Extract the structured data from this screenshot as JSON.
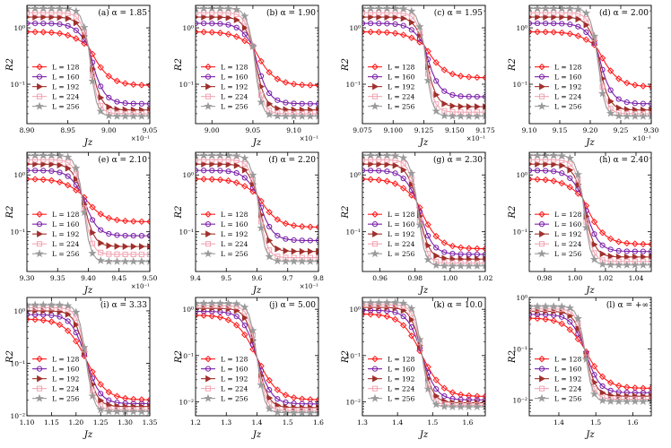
{
  "figure": {
    "legend_labels": [
      "L = 128",
      "L = 160",
      "L = 192",
      "L = 224",
      "L = 256"
    ],
    "series_colors": [
      "#ff1a1a",
      "#7a1fa8",
      "#a0302c",
      "#f2a6b4",
      "#9a9a9a"
    ],
    "series_markers": [
      "diamond",
      "circle",
      "triangle-right",
      "square",
      "star"
    ],
    "ylabel": "R2",
    "xlabel": "Jz"
  },
  "chart_data": [
    {
      "type": "line",
      "panel": "(a)",
      "title": "(a) α = 1.85",
      "xlabel": "Jz",
      "ylabel": "R2",
      "xlim": [
        8.9,
        9.05
      ],
      "ylim": [
        0.02,
        2.5
      ],
      "yscale": "log",
      "xticks": [
        "8.90",
        "8.95",
        "9.00",
        "9.05"
      ],
      "xscale_note": "×10⁻¹",
      "yticks": [
        "10⁰",
        "10⁻¹"
      ],
      "crossing": [
        8.975,
        0.47
      ],
      "series": [
        {
          "name": "L = 128",
          "y_left": 0.85,
          "y_right": 0.095
        },
        {
          "name": "L = 160",
          "y_left": 1.2,
          "y_right": 0.045
        },
        {
          "name": "L = 192",
          "y_left": 1.55,
          "y_right": 0.035
        },
        {
          "name": "L = 224",
          "y_left": 1.85,
          "y_right": 0.03
        },
        {
          "name": "L = 256",
          "y_left": 2.2,
          "y_right": 0.027
        }
      ]
    },
    {
      "type": "line",
      "panel": "(b)",
      "title": "(b) α = 1.90",
      "xlabel": "Jz",
      "ylabel": "R2",
      "xlim": [
        8.98,
        9.13
      ],
      "ylim": [
        0.02,
        2.5
      ],
      "yscale": "log",
      "xticks": [
        "9.00",
        "9.05",
        "9.10"
      ],
      "xscale_note": "×10⁻¹",
      "yticks": [
        "10⁰",
        "10⁻¹"
      ],
      "crossing": [
        9.05,
        0.47
      ],
      "series": [
        {
          "name": "L = 128",
          "y_left": 0.85,
          "y_right": 0.095
        },
        {
          "name": "L = 160",
          "y_left": 1.2,
          "y_right": 0.045
        },
        {
          "name": "L = 192",
          "y_left": 1.55,
          "y_right": 0.035
        },
        {
          "name": "L = 224",
          "y_left": 1.85,
          "y_right": 0.03
        },
        {
          "name": "L = 256",
          "y_left": 2.2,
          "y_right": 0.027
        }
      ]
    },
    {
      "type": "line",
      "panel": "(c)",
      "title": "(c) α = 1.95",
      "xlabel": "Jz",
      "ylabel": "R2",
      "xlim": [
        9.075,
        9.175
      ],
      "ylim": [
        0.02,
        2.5
      ],
      "yscale": "log",
      "xticks": [
        "9.075",
        "9.100",
        "9.125",
        "9.150",
        "9.175"
      ],
      "xscale_note": "×10⁻¹",
      "yticks": [
        "10⁰",
        "10⁻¹"
      ],
      "crossing": [
        9.125,
        0.5
      ],
      "series": [
        {
          "name": "L = 128",
          "y_left": 0.85,
          "y_right": 0.13
        },
        {
          "name": "L = 160",
          "y_left": 1.2,
          "y_right": 0.06
        },
        {
          "name": "L = 192",
          "y_left": 1.55,
          "y_right": 0.04
        },
        {
          "name": "L = 224",
          "y_left": 1.85,
          "y_right": 0.032
        },
        {
          "name": "L = 256",
          "y_left": 2.2,
          "y_right": 0.027
        }
      ]
    },
    {
      "type": "line",
      "panel": "(d)",
      "title": "(d) α = 2.00",
      "xlabel": "Jz",
      "ylabel": "R2",
      "xlim": [
        9.1,
        9.3
      ],
      "ylim": [
        0.02,
        2.5
      ],
      "yscale": "log",
      "xticks": [
        "9.10",
        "9.15",
        "9.20",
        "9.25",
        "9.30"
      ],
      "xscale_note": "×10⁻¹",
      "yticks": [
        "10⁰",
        "10⁻¹"
      ],
      "crossing": [
        9.21,
        0.47
      ],
      "series": [
        {
          "name": "L = 128",
          "y_left": 0.85,
          "y_right": 0.09
        },
        {
          "name": "L = 160",
          "y_left": 1.2,
          "y_right": 0.045
        },
        {
          "name": "L = 192",
          "y_left": 1.55,
          "y_right": 0.035
        },
        {
          "name": "L = 224",
          "y_left": 1.85,
          "y_right": 0.03
        },
        {
          "name": "L = 256",
          "y_left": 2.2,
          "y_right": 0.027
        }
      ]
    },
    {
      "type": "line",
      "panel": "(e)",
      "title": "(e) α = 2.10",
      "xlabel": "Jz",
      "ylabel": "R2",
      "xlim": [
        9.3,
        9.5
      ],
      "ylim": [
        0.02,
        2.5
      ],
      "yscale": "log",
      "xticks": [
        "9.30",
        "9.35",
        "9.40",
        "9.45",
        "9.50"
      ],
      "xscale_note": "×10⁻¹",
      "yticks": [
        "10⁰",
        "10⁻¹"
      ],
      "crossing": [
        9.39,
        0.45
      ],
      "series": [
        {
          "name": "L = 128",
          "y_left": 0.85,
          "y_right": 0.15
        },
        {
          "name": "L = 160",
          "y_left": 1.2,
          "y_right": 0.085
        },
        {
          "name": "L = 192",
          "y_left": 1.55,
          "y_right": 0.055
        },
        {
          "name": "L = 224",
          "y_left": 1.85,
          "y_right": 0.04
        },
        {
          "name": "L = 256",
          "y_left": 2.2,
          "y_right": 0.03
        }
      ]
    },
    {
      "type": "line",
      "panel": "(f)",
      "title": "(f) α = 2.20",
      "xlabel": "Jz",
      "ylabel": "R2",
      "xlim": [
        9.4,
        9.8
      ],
      "ylim": [
        0.02,
        2.5
      ],
      "yscale": "log",
      "xticks": [
        "9.4",
        "9.5",
        "9.6",
        "9.7",
        "9.8"
      ],
      "xscale_note": "×10⁻¹",
      "yticks": [
        "10⁰",
        "10⁻¹"
      ],
      "crossing": [
        9.6,
        0.45
      ],
      "series": [
        {
          "name": "L = 128",
          "y_left": 0.85,
          "y_right": 0.12
        },
        {
          "name": "L = 160",
          "y_left": 1.2,
          "y_right": 0.07
        },
        {
          "name": "L = 192",
          "y_left": 1.55,
          "y_right": 0.045
        },
        {
          "name": "L = 224",
          "y_left": 1.85,
          "y_right": 0.035
        },
        {
          "name": "L = 256",
          "y_left": 2.2,
          "y_right": 0.03
        }
      ]
    },
    {
      "type": "line",
      "panel": "(g)",
      "title": "(g) α = 2.30",
      "xlabel": "Jz",
      "ylabel": "R2",
      "xlim": [
        0.95,
        1.02
      ],
      "ylim": [
        0.02,
        2.5
      ],
      "yscale": "log",
      "xticks": [
        "0.96",
        "0.98",
        "1.00",
        "1.02"
      ],
      "yticks": [
        "10⁰",
        "10⁻¹"
      ],
      "crossing": [
        0.981,
        0.35
      ],
      "series": [
        {
          "name": "L = 128",
          "y_left": 0.85,
          "y_right": 0.05
        },
        {
          "name": "L = 160",
          "y_left": 1.2,
          "y_right": 0.04
        },
        {
          "name": "L = 192",
          "y_left": 1.55,
          "y_right": 0.033
        },
        {
          "name": "L = 224",
          "y_left": 1.85,
          "y_right": 0.028
        },
        {
          "name": "L = 256",
          "y_left": 2.2,
          "y_right": 0.025
        }
      ]
    },
    {
      "type": "line",
      "panel": "(h)",
      "title": "(h) α = 2.40",
      "xlabel": "Jz",
      "ylabel": "R2",
      "xlim": [
        0.97,
        1.05
      ],
      "ylim": [
        0.02,
        2.5
      ],
      "yscale": "log",
      "xticks": [
        "0.98",
        "1.00",
        "1.02",
        "1.04"
      ],
      "yticks": [
        "10⁰",
        "10⁻¹"
      ],
      "crossing": [
        1.005,
        0.4
      ],
      "series": [
        {
          "name": "L = 128",
          "y_left": 0.85,
          "y_right": 0.06
        },
        {
          "name": "L = 160",
          "y_left": 1.2,
          "y_right": 0.045
        },
        {
          "name": "L = 192",
          "y_left": 1.55,
          "y_right": 0.036
        },
        {
          "name": "L = 224",
          "y_left": 1.85,
          "y_right": 0.03
        },
        {
          "name": "L = 256",
          "y_left": 2.2,
          "y_right": 0.026
        }
      ]
    },
    {
      "type": "line",
      "panel": "(i)",
      "title": "(i) α = 3.33",
      "xlabel": "Jz",
      "ylabel": "R2",
      "xlim": [
        1.1,
        1.35
      ],
      "ylim": [
        0.01,
        1.8
      ],
      "yscale": "log",
      "xticks": [
        "1.10",
        "1.15",
        "1.20",
        "1.25",
        "1.30",
        "1.35"
      ],
      "yticks": [
        "10⁰",
        "10⁻¹",
        "10⁻²"
      ],
      "crossing": [
        1.22,
        0.12
      ],
      "series": [
        {
          "name": "L = 128",
          "y_left": 0.7,
          "y_right": 0.02
        },
        {
          "name": "L = 160",
          "y_left": 0.85,
          "y_right": 0.017
        },
        {
          "name": "L = 192",
          "y_left": 1.0,
          "y_right": 0.015
        },
        {
          "name": "L = 224",
          "y_left": 1.15,
          "y_right": 0.013
        },
        {
          "name": "L = 256",
          "y_left": 1.3,
          "y_right": 0.012
        }
      ]
    },
    {
      "type": "line",
      "panel": "(j)",
      "title": "(j) α = 5.00",
      "xlabel": "Jz",
      "ylabel": "R2",
      "xlim": [
        1.2,
        1.6
      ],
      "ylim": [
        0.005,
        1.8
      ],
      "yscale": "log",
      "xticks": [
        "1.2",
        "1.3",
        "1.4",
        "1.5",
        "1.6"
      ],
      "yticks": [
        "10⁰",
        "10⁻¹",
        "10⁻²"
      ],
      "crossing": [
        1.4,
        0.09
      ],
      "series": [
        {
          "name": "L = 128",
          "y_left": 0.75,
          "y_right": 0.011
        },
        {
          "name": "L = 160",
          "y_left": 0.9,
          "y_right": 0.009
        },
        {
          "name": "L = 192",
          "y_left": 1.05,
          "y_right": 0.0075
        },
        {
          "name": "L = 224",
          "y_left": 1.2,
          "y_right": 0.0065
        },
        {
          "name": "L = 256",
          "y_left": 1.35,
          "y_right": 0.0058
        }
      ]
    },
    {
      "type": "line",
      "panel": "(k)",
      "title": "(k) α = 10.0",
      "xlabel": "Jz",
      "ylabel": "R2",
      "xlim": [
        1.3,
        1.65
      ],
      "ylim": [
        0.005,
        1.8
      ],
      "yscale": "log",
      "xticks": [
        "1.3",
        "1.4",
        "1.5",
        "1.6"
      ],
      "yticks": [
        "10⁰",
        "10⁻¹",
        "10⁻²"
      ],
      "crossing": [
        1.47,
        0.1
      ],
      "series": [
        {
          "name": "L = 128",
          "y_left": 0.8,
          "y_right": 0.013
        },
        {
          "name": "L = 160",
          "y_left": 0.95,
          "y_right": 0.011
        },
        {
          "name": "L = 192",
          "y_left": 1.1,
          "y_right": 0.0095
        },
        {
          "name": "L = 224",
          "y_left": 1.25,
          "y_right": 0.0085
        },
        {
          "name": "L = 256",
          "y_left": 1.4,
          "y_right": 0.0078
        }
      ]
    },
    {
      "type": "line",
      "panel": "(l)",
      "title": "(l) α = +∞",
      "xlabel": "Jz",
      "ylabel": "R2",
      "xlim": [
        1.32,
        1.65
      ],
      "ylim": [
        0.005,
        1.0
      ],
      "yscale": "log",
      "xticks": [
        "1.4",
        "1.5",
        "1.6"
      ],
      "yticks": [
        "10⁰",
        "10⁻¹",
        "10⁻²"
      ],
      "crossing": [
        1.47,
        0.1
      ],
      "series": [
        {
          "name": "L = 128",
          "y_left": 0.4,
          "y_right": 0.017
        },
        {
          "name": "L = 160",
          "y_left": 0.47,
          "y_right": 0.014
        },
        {
          "name": "L = 192",
          "y_left": 0.54,
          "y_right": 0.012
        },
        {
          "name": "L = 224",
          "y_left": 0.6,
          "y_right": 0.0105
        },
        {
          "name": "L = 256",
          "y_left": 0.67,
          "y_right": 0.0095
        }
      ]
    }
  ]
}
